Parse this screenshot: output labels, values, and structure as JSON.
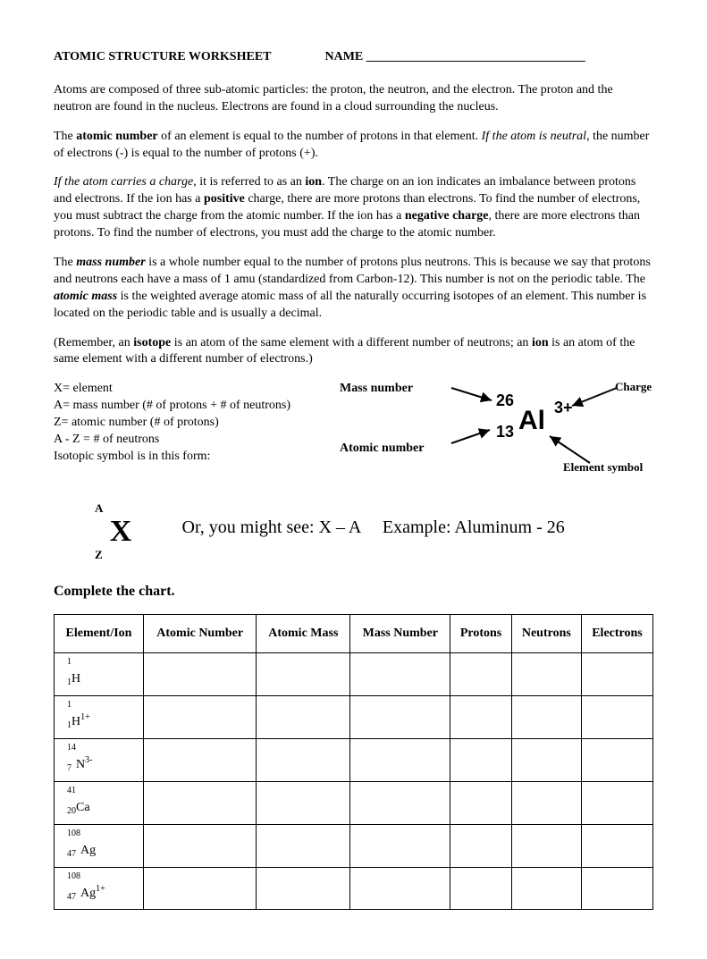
{
  "header": {
    "title": "ATOMIC STRUCTURE WORKSHEET",
    "name_label": "NAME ___________________________________"
  },
  "para1": {
    "t": "Atoms are composed of three sub-atomic particles:  the proton, the neutron, and the electron.  The proton and the neutron are found in the nucleus.  Electrons are found in a cloud surrounding the nucleus."
  },
  "para2": {
    "a": "The ",
    "b": "atomic number",
    "c": " of an element is equal to the number of protons in that element.  ",
    "d": "If the atom is neutral",
    "e": ", the number of electrons (-) is equal to the number of protons (+)."
  },
  "para3": {
    "a": "If the atom carries a charge",
    "b": ", it is referred to as an ",
    "c": "ion",
    "d": ".  The charge on an ion indicates an imbalance between protons and electrons.  If the ion has a ",
    "e": "positive",
    "f": " charge, there are more protons than electrons. To find the number of electrons, you must subtract the charge from the atomic number.  If the ion has a ",
    "g": "negative charge",
    "h": ", there are more electrons than protons. To find the number of electrons, you must add the charge to the atomic number."
  },
  "para4": {
    "a": "The ",
    "b": "mass number",
    "c": " is a whole number equal to the number of protons plus neutrons. This is because we say that protons and neutrons each have a mass of 1 amu (standardized from Carbon-12). This number is not on the periodic table. The ",
    "d": "atomic mass",
    "e": " is the weighted average atomic mass of all the naturally occurring isotopes of an element. This number is located on the periodic table and is usually a decimal."
  },
  "para5": {
    "a": "(Remember, an ",
    "b": "isotope",
    "c": " is an atom of the same element with a different number of neutrons; an ",
    "d": "ion",
    "e": " is an atom of the same element with a different number of electrons.)"
  },
  "legend": {
    "l1": "X= element",
    "l2": "A= mass number (# of protons + # of neutrons)",
    "l3": "Z= atomic number (# of protons)",
    "l4": "A - Z = # of neutrons",
    "l5": "Isotopic symbol is in this form:"
  },
  "notation": {
    "mass_label": "Mass number",
    "atomic_label": "Atomic number",
    "charge_label": "Charge",
    "elsym_label": "Element symbol",
    "mass_val": "26",
    "atomic_val": "13",
    "element": "Al",
    "charge": "3+"
  },
  "symbolblock": {
    "A": "A",
    "X": "X",
    "Z": "Z"
  },
  "orline": {
    "a": "Or, you might see: X – A",
    "b": "Example: Aluminum - 26"
  },
  "complete": "Complete the chart.",
  "table": {
    "headers": [
      "Element/Ion",
      "Atomic Number",
      "Atomic Mass",
      "Mass Number",
      "Protons",
      "Neutrons",
      "Electrons"
    ],
    "rows": [
      {
        "top": "1",
        "bot": "1",
        "sym": "H",
        "chg": ""
      },
      {
        "top": "1",
        "bot": "1",
        "sym": "H",
        "chg": "1+"
      },
      {
        "top": "14",
        "bot": "7",
        "sym": "N",
        "chg": "3-"
      },
      {
        "top": "41",
        "bot": "20",
        "sym": "Ca",
        "chg": ""
      },
      {
        "top": "108",
        "bot": "47",
        "sym": "Ag",
        "chg": ""
      },
      {
        "top": "108",
        "bot": "47",
        "sym": "Ag",
        "chg": "1+"
      }
    ]
  }
}
